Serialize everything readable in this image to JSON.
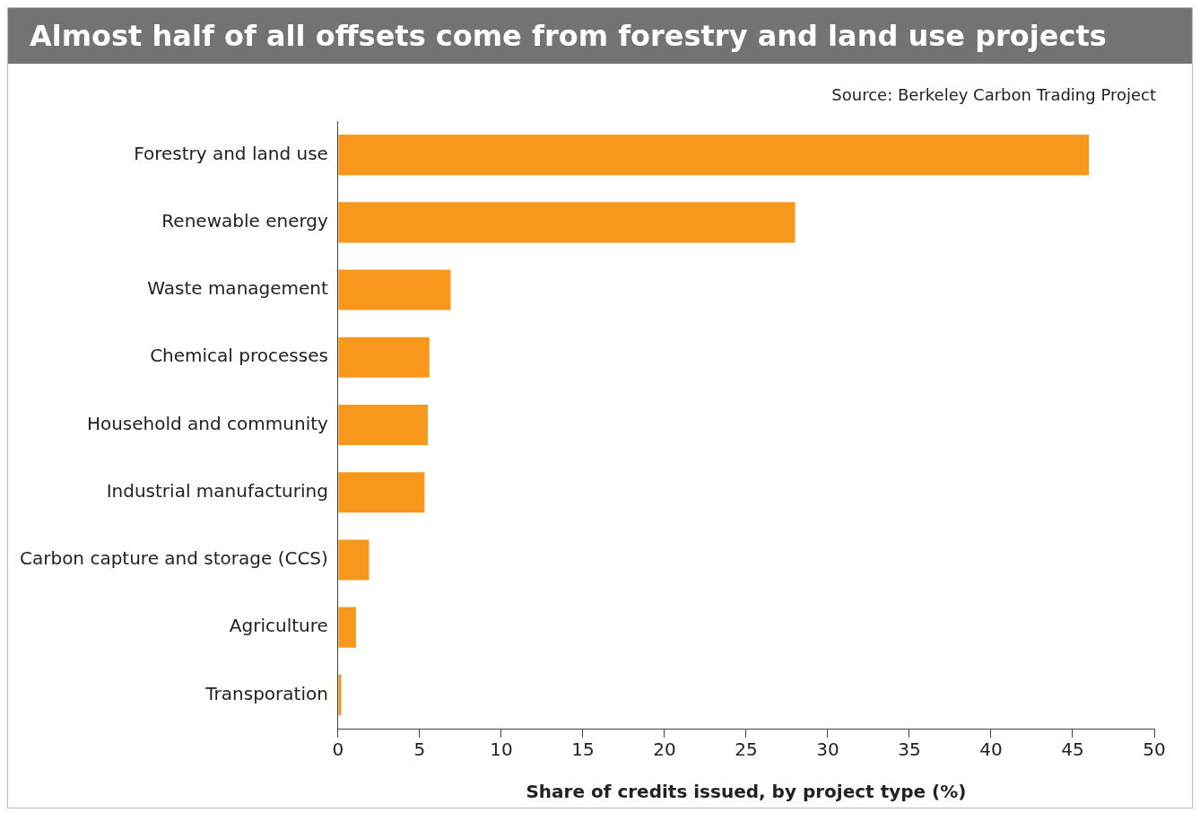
{
  "chart_data": {
    "type": "bar",
    "orientation": "horizontal",
    "title": "Almost half of all offsets come from forestry and land use projects",
    "xlabel": "Share of credits issued, by project type (%)",
    "annotations": [
      "Source: Berkeley Carbon Trading Project"
    ],
    "categories": [
      "Forestry and land use",
      "Renewable energy",
      "Waste management",
      "Chemical processes",
      "Household and community",
      "Industrial manufacturing",
      "Carbon capture and storage (CCS)",
      "Agriculture",
      "Transporation"
    ],
    "values": [
      46,
      28,
      6.9,
      5.6,
      5.5,
      5.3,
      1.9,
      1.1,
      0.2
    ],
    "color": "#f7981d",
    "xlim": [
      0,
      50
    ],
    "xticks": [
      0,
      5,
      10,
      15,
      20,
      25,
      30,
      35,
      40,
      45,
      50
    ],
    "grid": false,
    "legend": false
  }
}
